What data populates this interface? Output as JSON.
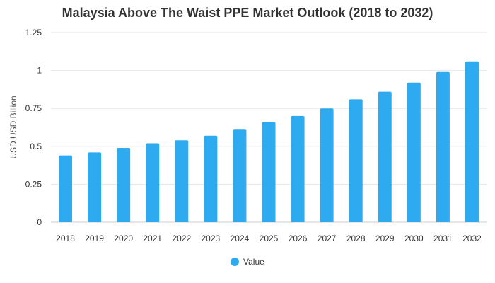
{
  "chart_data": {
    "type": "bar",
    "title": "Malaysia Above The Waist PPE Market Outlook (2018 to 2032)",
    "xlabel": "",
    "ylabel": "USD USD Billion",
    "ylim": [
      0,
      1.25
    ],
    "yticks": [
      "0",
      "0.25",
      "0.5",
      "0.75",
      "1",
      "1.25"
    ],
    "ytick_values": [
      0,
      0.25,
      0.5,
      0.75,
      1,
      1.25
    ],
    "grid": true,
    "legend": "bottom-center",
    "categories": [
      "2018",
      "2019",
      "2020",
      "2021",
      "2022",
      "2023",
      "2024",
      "2025",
      "2026",
      "2027",
      "2028",
      "2029",
      "2030",
      "2031",
      "2032"
    ],
    "series": [
      {
        "name": "Value",
        "color": "#2eaaf0",
        "values": [
          0.44,
          0.46,
          0.49,
          0.52,
          0.54,
          0.57,
          0.61,
          0.66,
          0.7,
          0.75,
          0.81,
          0.86,
          0.92,
          0.99,
          1.06
        ]
      }
    ]
  }
}
